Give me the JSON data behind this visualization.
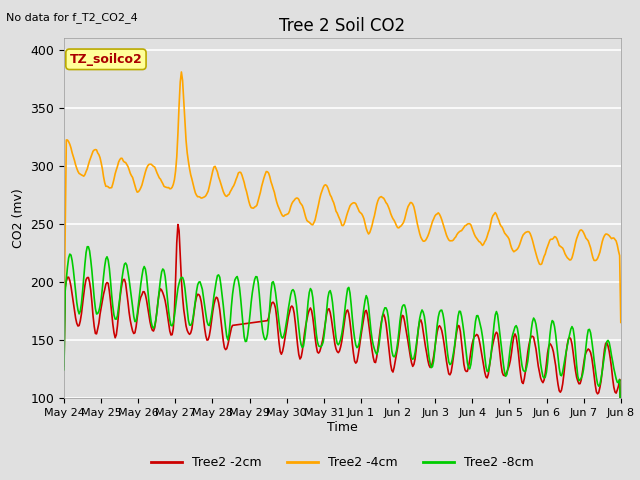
{
  "title": "Tree 2 Soil CO2",
  "top_left_text": "No data for f_T2_CO2_4",
  "annotation_box": "TZ_soilco2",
  "xlabel": "Time",
  "ylabel": "CO2 (mv)",
  "ylim": [
    100,
    410
  ],
  "yticks": [
    100,
    150,
    200,
    250,
    300,
    350,
    400
  ],
  "fig_bg_color": "#e0e0e0",
  "plot_bg_color": "#e0e0e0",
  "grid_color": "#ffffff",
  "series_colors": {
    "red": "#cc0000",
    "orange": "#ffa500",
    "green": "#00cc00"
  },
  "linewidth": 1.2,
  "x_tick_labels": [
    "May 24",
    "May 25",
    "May 26",
    "May 27",
    "May 28",
    "May 29",
    "May 30",
    "May 31",
    "Jun 1",
    "Jun 2",
    "Jun 3",
    "Jun 4",
    "Jun 5",
    "Jun 6",
    "Jun 7",
    "Jun 8"
  ],
  "legend_labels": [
    "Tree2 -2cm",
    "Tree2 -4cm",
    "Tree2 -8cm"
  ],
  "num_points": 480
}
